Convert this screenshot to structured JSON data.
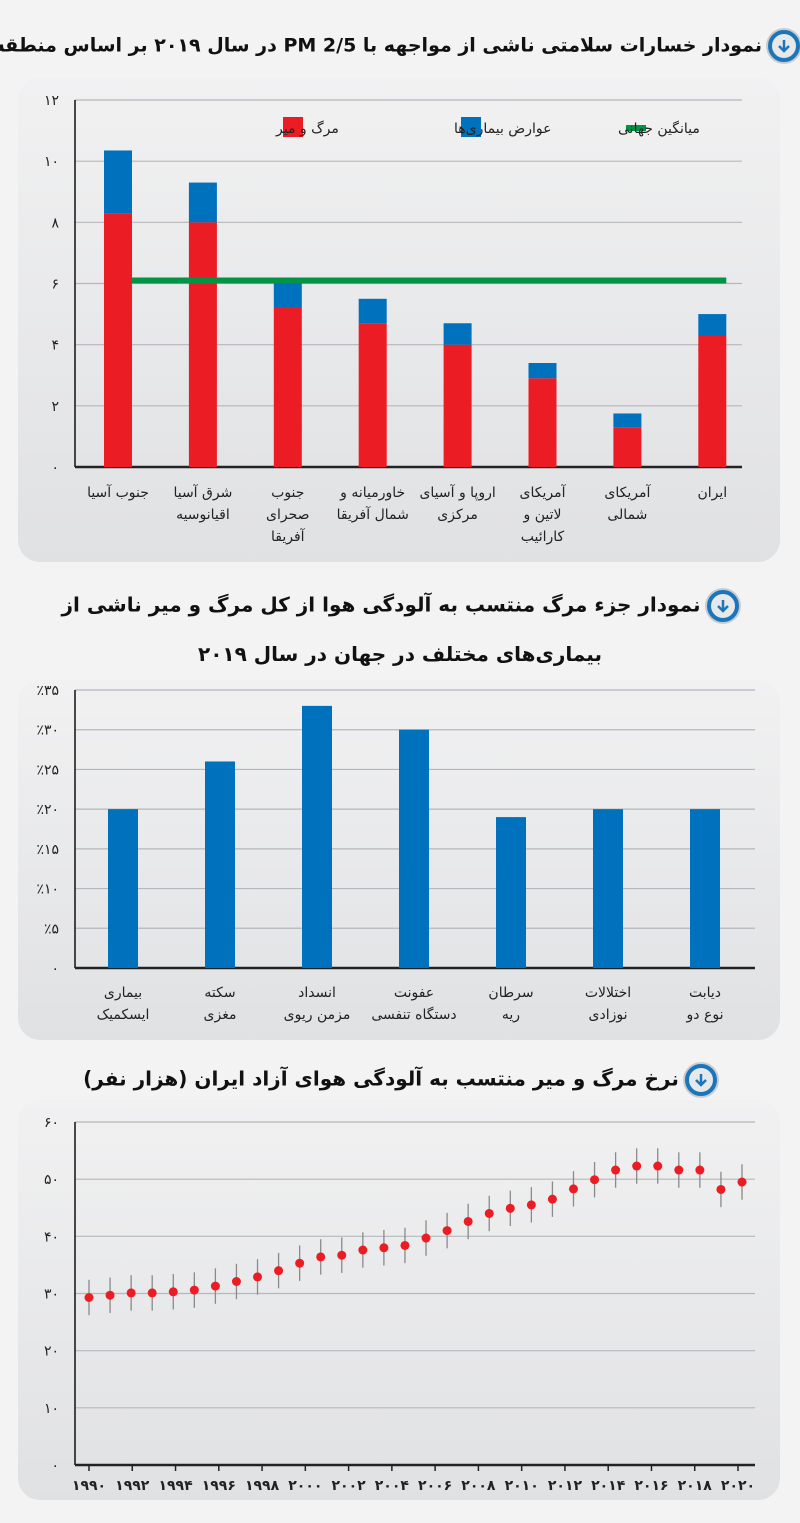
{
  "colors": {
    "death": "#ec1c24",
    "disease": "#0071bc",
    "global_avg": "#009444",
    "icon_ring": "#1b75bb"
  },
  "charts": {
    "c1_title": "نمودار خسارات سلامتی ناشی از مواجهه با PM 2/5 در سال ۲۰۱۹ بر اساس منطقه",
    "c2_title_line1": "نمودار جزء مرگ منتسب به آلودگی هوا از کل مرگ و میر ناشی از",
    "c2_title_line2": "بیماری‌های مختلف در جهان در سال ۲۰۱۹",
    "c3_title": "نرخ مرگ و میر منتسب به آلودگی هوای آزاد ایران (هزار نفر)"
  },
  "chart_data": [
    {
      "type": "bar",
      "stacked": true,
      "title": "نمودار خسارات سلامتی ناشی از مواجهه با PM 2/5 در سال ۲۰۱۹ بر اساس منطقه",
      "categories": [
        [
          "جنوب آسیا"
        ],
        [
          "شرق آسیا",
          "اقیانوسیه"
        ],
        [
          "جنوب",
          "صحرای",
          "آفریقا"
        ],
        [
          "خاورمیانه و",
          "شمال آفریقا"
        ],
        [
          "اروپا و آسیای",
          "مرکزی"
        ],
        [
          "آمریکای",
          "لاتین و",
          "کارائیب"
        ],
        [
          "آمریکای",
          "شمالی"
        ],
        [
          "ایران"
        ]
      ],
      "series": [
        {
          "name": "مرگ و میر",
          "color": "#ec1c24",
          "values": [
            8.3,
            8.0,
            5.2,
            4.7,
            4.0,
            2.9,
            1.3,
            4.3
          ]
        },
        {
          "name": "عوارض بیماری‌ها",
          "color": "#0071bc",
          "values": [
            2.05,
            1.3,
            0.8,
            0.8,
            0.7,
            0.5,
            0.45,
            0.7
          ]
        }
      ],
      "reference_line": {
        "name": "میانگین جهانی",
        "value": 6.1,
        "color": "#009444"
      },
      "ylim": [
        0,
        12
      ],
      "yticks": [
        0,
        2,
        4,
        6,
        8,
        10,
        12
      ],
      "ytick_labels": [
        "۰",
        "۲",
        "۴",
        "۶",
        "۸",
        "۱۰",
        "۱۲"
      ],
      "grid": true,
      "legend": "top"
    },
    {
      "type": "bar",
      "title": "نمودار جزء مرگ منتسب به آلودگی هوا از کل مرگ و میر ناشی از بیماری‌های مختلف در جهان در سال ۲۰۱۹",
      "categories": [
        [
          "بیماری",
          "ایسکمیک"
        ],
        [
          "سکته",
          "مغزی"
        ],
        [
          "انسداد",
          "مزمن ریوی"
        ],
        [
          "عفونت",
          "دستگاه تنفسی"
        ],
        [
          "سرطان",
          "ریه"
        ],
        [
          "اختلالات",
          "نوزادی"
        ],
        [
          "دیابت",
          "نوع دو"
        ]
      ],
      "values": [
        20,
        26,
        33,
        30,
        19,
        20,
        20
      ],
      "unit": "%",
      "ylim": [
        0,
        35
      ],
      "yticks": [
        0,
        5,
        10,
        15,
        20,
        25,
        30,
        35
      ],
      "ytick_labels": [
        "۰",
        "٪۵",
        "٪۱۰",
        "٪۱۵",
        "٪۲۰",
        "٪۲۵",
        "٪۳۰",
        "٪۳۵"
      ],
      "grid": true
    },
    {
      "type": "scatter",
      "error_bars": true,
      "title": "نرخ مرگ و میر منتسب به آلودگی هوای آزاد ایران (هزار نفر)",
      "x": [
        1990,
        1991,
        1992,
        1993,
        1994,
        1995,
        1996,
        1997,
        1998,
        1999,
        2000,
        2001,
        2002,
        2003,
        2004,
        2005,
        2006,
        2007,
        2008,
        2009,
        2010,
        2011,
        2012,
        2013,
        2014,
        2015,
        2016,
        2017,
        2018,
        2019,
        2020,
        2021
      ],
      "y": [
        29.3,
        29.7,
        30.1,
        30.1,
        30.3,
        30.6,
        31.3,
        32.1,
        32.9,
        34.0,
        35.3,
        36.4,
        36.7,
        37.6,
        38.0,
        38.4,
        39.7,
        41.0,
        42.6,
        44.0,
        44.9,
        45.5,
        46.5,
        48.3,
        49.9,
        51.6,
        52.3,
        52.3,
        51.6,
        51.6,
        48.2,
        49.5
      ],
      "error": 3.1,
      "color": "#ec1c24",
      "ylim": [
        0,
        60
      ],
      "yticks": [
        0,
        10,
        20,
        30,
        40,
        50,
        60
      ],
      "ytick_labels": [
        "۰",
        "۱۰",
        "۲۰",
        "۳۰",
        "۴۰",
        "۵۰",
        "۶۰"
      ],
      "xticks": [
        1990,
        1992,
        1994,
        1996,
        1998,
        2000,
        2002,
        2004,
        2006,
        2008,
        2010,
        2012,
        2014,
        2016,
        2018,
        2020
      ],
      "xtick_labels": [
        "۱۹۹۰",
        "۱۹۹۲",
        "۱۹۹۴",
        "۱۹۹۶",
        "۱۹۹۸",
        "۲۰۰۰",
        "۲۰۰۲",
        "۲۰۰۴",
        "۲۰۰۶",
        "۲۰۰۸",
        "۲۰۱۰",
        "۲۰۱۲",
        "۲۰۱۴",
        "۲۰۱۶",
        "۲۰۱۸",
        "۲۰۲۰"
      ],
      "grid": true
    }
  ]
}
